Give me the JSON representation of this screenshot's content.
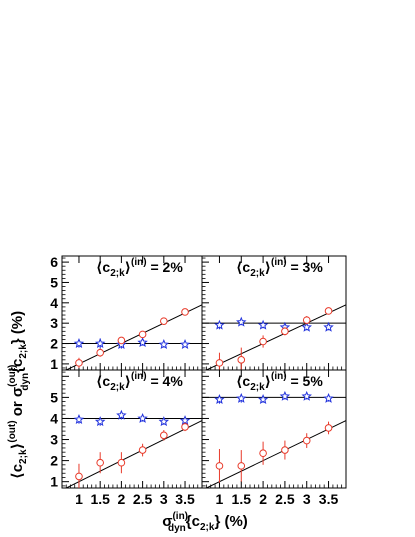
{
  "figure": {
    "ylabel": {
      "main_left": "⟨c",
      "sub_left": "2;k",
      "sup_left": "(out)",
      "close_left": "⟩",
      "or": "  or  σ",
      "sup_mid": "(out)",
      "sub_mid": "dyn",
      "brace": "{c",
      "sub_right": "2;k",
      "close_right": "}  (%)"
    },
    "xlabel": {
      "sigma": "σ",
      "sup": "(in)",
      "sub": "dyn",
      "brace": "{c",
      "sub2": "2;k",
      "close": "}  (%)"
    },
    "colors": {
      "red": "#e83a2a",
      "blue": "#2233dd",
      "fit": "#000000"
    }
  },
  "chart_data": [
    {
      "type": "scatter",
      "panel": "top-left",
      "annotation": {
        "open": "⟨c",
        "sub": "2;k",
        "close": "⟩",
        "sup": "(in)",
        "value": " = 2%"
      },
      "xlim": [
        0.6,
        3.9
      ],
      "ylim": [
        0.7,
        6.3
      ],
      "xticks": [],
      "yticks": [
        "1",
        "2",
        "3",
        "4",
        "5",
        "6"
      ],
      "red_points": [
        {
          "x": 1.0,
          "y": 1.05,
          "err": 0.25
        },
        {
          "x": 1.5,
          "y": 1.55,
          "err": 0.2
        },
        {
          "x": 2.0,
          "y": 2.15,
          "err": 0.15
        },
        {
          "x": 2.5,
          "y": 2.45,
          "err": 0.15
        },
        {
          "x": 3.0,
          "y": 3.1,
          "err": 0.1
        },
        {
          "x": 3.5,
          "y": 3.55,
          "err": 0.08
        }
      ],
      "blue_points": [
        {
          "x": 1.0,
          "y": 2.0,
          "err": 0.2
        },
        {
          "x": 1.5,
          "y": 2.0,
          "err": 0.25
        },
        {
          "x": 2.0,
          "y": 1.95,
          "err": 0.2
        },
        {
          "x": 2.5,
          "y": 2.05,
          "err": 0.15
        },
        {
          "x": 3.0,
          "y": 1.95,
          "err": 0.15
        },
        {
          "x": 3.5,
          "y": 1.95,
          "err": 0.12
        }
      ],
      "hline_y": 2.0,
      "diag_line": [
        [
          0.6,
          0.6
        ],
        [
          3.9,
          3.9
        ]
      ]
    },
    {
      "type": "scatter",
      "panel": "top-right",
      "annotation": {
        "open": "⟨c",
        "sub": "2;k",
        "close": "⟩",
        "sup": "(in)",
        "value": " = 3%"
      },
      "xlim": [
        0.6,
        3.9
      ],
      "ylim": [
        0.7,
        6.3
      ],
      "xticks": [],
      "yticks": [],
      "red_points": [
        {
          "x": 1.0,
          "y": 1.05,
          "err": 0.5
        },
        {
          "x": 1.5,
          "y": 1.2,
          "err": 0.6
        },
        {
          "x": 2.0,
          "y": 2.1,
          "err": 0.3
        },
        {
          "x": 2.5,
          "y": 2.6,
          "err": 0.2
        },
        {
          "x": 3.0,
          "y": 3.15,
          "err": 0.2
        },
        {
          "x": 3.5,
          "y": 3.6,
          "err": 0.12
        }
      ],
      "blue_points": [
        {
          "x": 1.0,
          "y": 2.9,
          "err": 0.2
        },
        {
          "x": 1.5,
          "y": 3.05,
          "err": 0.15
        },
        {
          "x": 2.0,
          "y": 2.9,
          "err": 0.15
        },
        {
          "x": 2.5,
          "y": 2.8,
          "err": 0.15
        },
        {
          "x": 3.0,
          "y": 2.8,
          "err": 0.15
        },
        {
          "x": 3.5,
          "y": 2.8,
          "err": 0.15
        }
      ],
      "hline_y": 3.0,
      "diag_line": [
        [
          0.6,
          0.6
        ],
        [
          3.9,
          3.9
        ]
      ]
    },
    {
      "type": "scatter",
      "panel": "bottom-left",
      "annotation": {
        "open": "⟨c",
        "sub": "2;k",
        "close": "⟩",
        "sup": "(in)",
        "value": " = 4%"
      },
      "xlim": [
        0.6,
        3.9
      ],
      "ylim": [
        0.7,
        6.3
      ],
      "xticks": [
        "1",
        "1.5",
        "2",
        "2.5",
        "3",
        "3.5"
      ],
      "yticks": [
        "1",
        "2",
        "3",
        "4",
        "5"
      ],
      "red_points": [
        {
          "x": 1.0,
          "y": 1.25,
          "err": 0.6
        },
        {
          "x": 1.5,
          "y": 1.9,
          "err": 0.5
        },
        {
          "x": 2.0,
          "y": 1.9,
          "err": 0.5
        },
        {
          "x": 2.5,
          "y": 2.5,
          "err": 0.3
        },
        {
          "x": 3.0,
          "y": 3.2,
          "err": 0.25
        },
        {
          "x": 3.5,
          "y": 3.6,
          "err": 0.2
        }
      ],
      "blue_points": [
        {
          "x": 1.0,
          "y": 3.95,
          "err": 0.2
        },
        {
          "x": 1.5,
          "y": 3.85,
          "err": 0.2
        },
        {
          "x": 2.0,
          "y": 4.15,
          "err": 0.2
        },
        {
          "x": 2.5,
          "y": 4.0,
          "err": 0.15
        },
        {
          "x": 3.0,
          "y": 3.85,
          "err": 0.15
        },
        {
          "x": 3.5,
          "y": 3.9,
          "err": 0.15
        }
      ],
      "hline_y": 4.0,
      "diag_line": [
        [
          0.6,
          0.6
        ],
        [
          3.9,
          3.9
        ]
      ]
    },
    {
      "type": "scatter",
      "panel": "bottom-right",
      "annotation": {
        "open": "⟨c",
        "sub": "2;k",
        "close": "⟩",
        "sup": "(in)",
        "value": " = 5%"
      },
      "xlim": [
        0.6,
        3.9
      ],
      "ylim": [
        0.7,
        6.3
      ],
      "xticks": [
        "1",
        "1.5",
        "2",
        "2.5",
        "3",
        "3.5"
      ],
      "yticks": [],
      "red_points": [
        {
          "x": 1.0,
          "y": 1.75,
          "err": 0.8
        },
        {
          "x": 1.5,
          "y": 1.75,
          "err": 0.75
        },
        {
          "x": 2.0,
          "y": 2.35,
          "err": 0.55
        },
        {
          "x": 2.5,
          "y": 2.5,
          "err": 0.45
        },
        {
          "x": 3.0,
          "y": 2.95,
          "err": 0.35
        },
        {
          "x": 3.5,
          "y": 3.55,
          "err": 0.3
        }
      ],
      "blue_points": [
        {
          "x": 1.0,
          "y": 4.9,
          "err": 0.2
        },
        {
          "x": 1.5,
          "y": 4.95,
          "err": 0.2
        },
        {
          "x": 2.0,
          "y": 4.9,
          "err": 0.15
        },
        {
          "x": 2.5,
          "y": 5.05,
          "err": 0.15
        },
        {
          "x": 3.0,
          "y": 5.05,
          "err": 0.15
        },
        {
          "x": 3.5,
          "y": 4.95,
          "err": 0.15
        }
      ],
      "hline_y": 5.0,
      "diag_line": [
        [
          0.6,
          0.6
        ],
        [
          3.9,
          3.9
        ]
      ]
    }
  ]
}
